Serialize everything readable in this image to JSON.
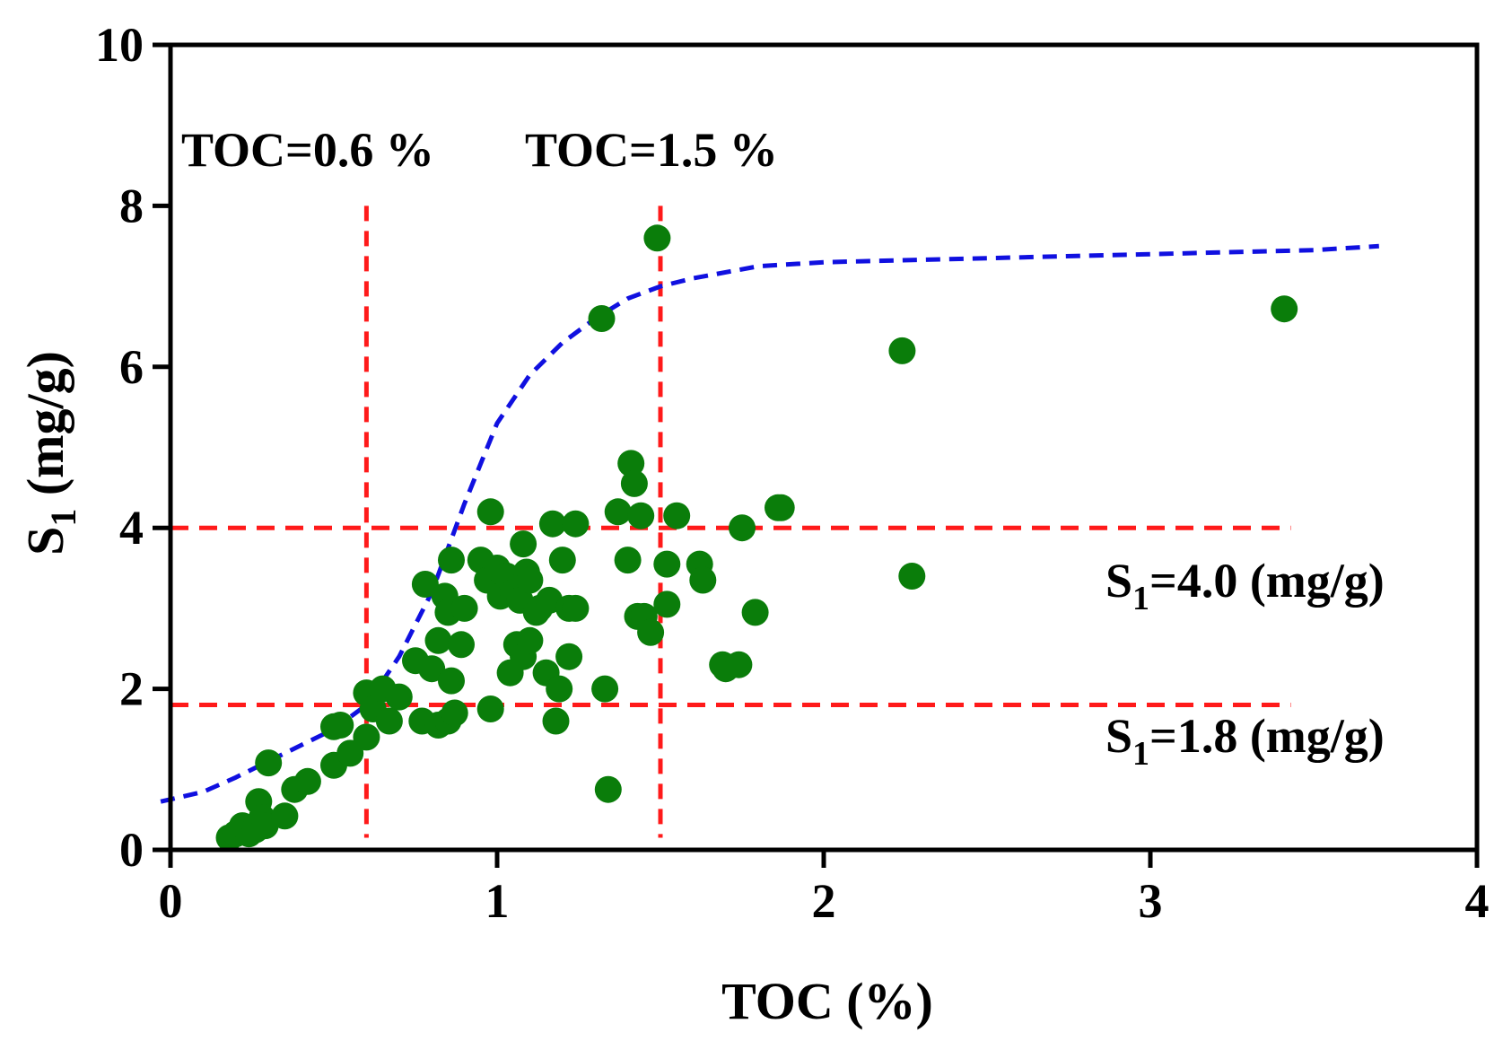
{
  "chart_data": {
    "type": "scatter",
    "xlabel": "TOC (%)",
    "ylabel_main": "S",
    "ylabel_sub": "1",
    "ylabel_rest": " (mg/g)",
    "xlim": [
      0,
      4
    ],
    "ylim": [
      0,
      10
    ],
    "xticks": [
      0,
      1,
      2,
      3,
      4
    ],
    "yticks": [
      0,
      2,
      4,
      6,
      8,
      10
    ],
    "point_color": "#0a7d0a",
    "curve_color": "#1010e0",
    "threshold_color": "#ff1a1a",
    "thresholds": {
      "vertical": [
        {
          "x": 0.6,
          "label": "TOC=0.6 %"
        },
        {
          "x": 1.5,
          "label": "TOC=1.5 %"
        }
      ],
      "horizontal": [
        {
          "y": 4.0,
          "label_main": "S",
          "label_sub": "1",
          "label_rest": "=4.0 (mg/g)"
        },
        {
          "y": 1.8,
          "label_main": "S",
          "label_sub": "1",
          "label_rest": "=1.8 (mg/g)"
        }
      ]
    },
    "trend_curve": {
      "x": [
        -0.03,
        0.1,
        0.2,
        0.3,
        0.4,
        0.5,
        0.6,
        0.7,
        0.8,
        0.9,
        1.0,
        1.1,
        1.2,
        1.3,
        1.4,
        1.5,
        1.6,
        1.8,
        2.0,
        2.5,
        3.0,
        3.5,
        3.7
      ],
      "y": [
        0.6,
        0.72,
        0.9,
        1.1,
        1.3,
        1.5,
        1.8,
        2.4,
        3.2,
        4.3,
        5.3,
        5.9,
        6.3,
        6.6,
        6.85,
        7.0,
        7.1,
        7.25,
        7.3,
        7.35,
        7.4,
        7.45,
        7.5
      ]
    },
    "points": [
      [
        0.18,
        0.15
      ],
      [
        0.2,
        0.2
      ],
      [
        0.22,
        0.3
      ],
      [
        0.24,
        0.2
      ],
      [
        0.26,
        0.25
      ],
      [
        0.27,
        0.6
      ],
      [
        0.28,
        0.4
      ],
      [
        0.29,
        0.3
      ],
      [
        0.3,
        1.08
      ],
      [
        0.35,
        0.42
      ],
      [
        0.38,
        0.75
      ],
      [
        0.42,
        0.85
      ],
      [
        0.5,
        1.05
      ],
      [
        0.5,
        1.53
      ],
      [
        0.52,
        1.55
      ],
      [
        0.55,
        1.2
      ],
      [
        0.6,
        1.4
      ],
      [
        0.6,
        1.95
      ],
      [
        0.62,
        1.75
      ],
      [
        0.65,
        2.0
      ],
      [
        0.67,
        1.6
      ],
      [
        0.7,
        1.9
      ],
      [
        0.75,
        2.35
      ],
      [
        0.77,
        1.6
      ],
      [
        0.78,
        3.3
      ],
      [
        0.8,
        2.25
      ],
      [
        0.82,
        1.55
      ],
      [
        0.82,
        2.6
      ],
      [
        0.84,
        3.15
      ],
      [
        0.85,
        1.6
      ],
      [
        0.85,
        2.95
      ],
      [
        0.86,
        3.6
      ],
      [
        0.86,
        2.1
      ],
      [
        0.87,
        1.7
      ],
      [
        0.89,
        2.55
      ],
      [
        0.9,
        3.0
      ],
      [
        0.95,
        3.6
      ],
      [
        0.97,
        3.35
      ],
      [
        0.98,
        1.75
      ],
      [
        0.98,
        4.2
      ],
      [
        1.0,
        3.5
      ],
      [
        1.01,
        3.15
      ],
      [
        1.03,
        3.4
      ],
      [
        1.04,
        2.2
      ],
      [
        1.05,
        3.2
      ],
      [
        1.06,
        2.55
      ],
      [
        1.07,
        3.1
      ],
      [
        1.08,
        2.4
      ],
      [
        1.08,
        3.8
      ],
      [
        1.09,
        3.45
      ],
      [
        1.1,
        2.6
      ],
      [
        1.1,
        3.35
      ],
      [
        1.12,
        2.95
      ],
      [
        1.13,
        3.0
      ],
      [
        1.15,
        2.2
      ],
      [
        1.16,
        3.1
      ],
      [
        1.17,
        4.05
      ],
      [
        1.18,
        1.6
      ],
      [
        1.19,
        2.0
      ],
      [
        1.2,
        3.6
      ],
      [
        1.22,
        2.4
      ],
      [
        1.22,
        3.0
      ],
      [
        1.24,
        4.05
      ],
      [
        1.24,
        3.0
      ],
      [
        1.32,
        6.6
      ],
      [
        1.33,
        2.0
      ],
      [
        1.34,
        0.75
      ],
      [
        1.37,
        4.2
      ],
      [
        1.4,
        3.6
      ],
      [
        1.41,
        4.8
      ],
      [
        1.42,
        4.55
      ],
      [
        1.43,
        2.9
      ],
      [
        1.44,
        4.15
      ],
      [
        1.45,
        2.9
      ],
      [
        1.47,
        2.7
      ],
      [
        1.49,
        7.6
      ],
      [
        1.52,
        3.55
      ],
      [
        1.52,
        3.05
      ],
      [
        1.55,
        4.15
      ],
      [
        1.62,
        3.55
      ],
      [
        1.63,
        3.35
      ],
      [
        1.69,
        2.3
      ],
      [
        1.7,
        2.25
      ],
      [
        1.74,
        2.3
      ],
      [
        1.75,
        4.0
      ],
      [
        1.79,
        2.95
      ],
      [
        1.86,
        4.25
      ],
      [
        1.87,
        4.25
      ],
      [
        2.24,
        6.2
      ],
      [
        2.27,
        3.4
      ],
      [
        3.41,
        6.72
      ]
    ]
  }
}
